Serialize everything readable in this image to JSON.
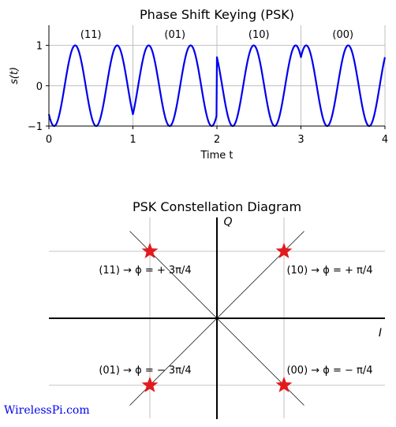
{
  "chart_data": [
    {
      "type": "line",
      "title": "Phase Shift Keying (PSK)",
      "xlabel": "Time t",
      "ylabel": "s(t)",
      "xlim": [
        0,
        4
      ],
      "ylim": [
        -1,
        1.5
      ],
      "x_ticks": [
        "0",
        "1",
        "2",
        "3",
        "4"
      ],
      "y_ticks": [
        "1",
        "0",
        "−1"
      ],
      "grid": true,
      "series_color": "#0000ee",
      "frequency_cycles_per_unit_time": 2,
      "symbols": [
        {
          "bits": "(11)",
          "t_start": 0,
          "t_end": 1,
          "phase_deg": 135
        },
        {
          "bits": "(01)",
          "t_start": 1,
          "t_end": 2,
          "phase_deg": -135
        },
        {
          "bits": "(10)",
          "t_start": 2,
          "t_end": 3,
          "phase_deg": 45
        },
        {
          "bits": "(00)",
          "t_start": 3,
          "t_end": 4,
          "phase_deg": -45
        }
      ]
    },
    {
      "type": "scatter",
      "title": "PSK Constellation Diagram",
      "xlabel": "I",
      "ylabel": "Q",
      "xlim": [
        -1.25,
        1.25
      ],
      "ylim": [
        -1.5,
        1.5
      ],
      "grid": true,
      "marker": "star",
      "marker_color": "#e31a1c",
      "points": [
        {
          "x": -1,
          "y": 1,
          "label": "(11) → ϕ = + 3π/4"
        },
        {
          "x": 1,
          "y": 1,
          "label": "(10) → ϕ = + π/4"
        },
        {
          "x": -1,
          "y": -1,
          "label": "(01) → ϕ = − 3π/4"
        },
        {
          "x": 1,
          "y": -1,
          "label": "(00) → ϕ = − π/4"
        }
      ]
    }
  ],
  "watermark": "WirelessPi.com"
}
